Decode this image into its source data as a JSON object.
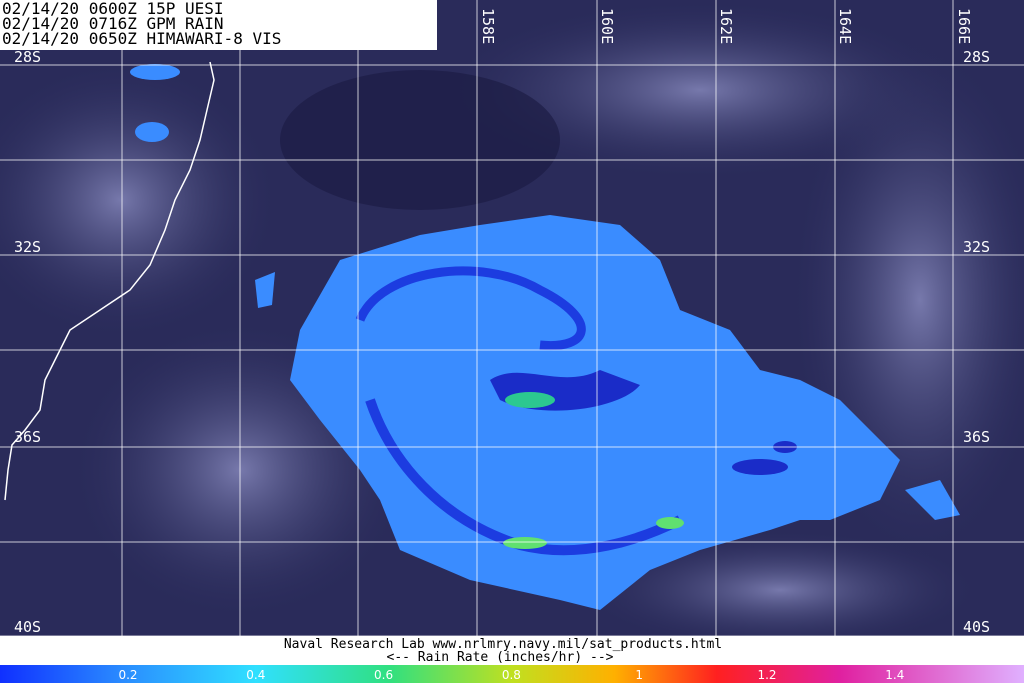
{
  "header": {
    "lines": [
      "02/14/20 0600Z 15P UESI",
      "02/14/20 0716Z GPM RAIN",
      "02/14/20 0650Z HIMAWARI-8 VIS"
    ]
  },
  "longitude_labels": [
    "158E",
    "160E",
    "162E",
    "164E",
    "166E"
  ],
  "latitude_labels": [
    "28S",
    "32S",
    "36S",
    "40S"
  ],
  "footer": {
    "credit": "Naval Research Lab  www.nrlmry.navy.mil/sat_products.html",
    "scale_title": "<--   Rain Rate (inches/hr)   -->"
  },
  "colorbar": {
    "ticks": [
      "0.2",
      "0.4",
      "0.6",
      "0.8",
      "1",
      "1.2",
      "1.4"
    ]
  }
}
